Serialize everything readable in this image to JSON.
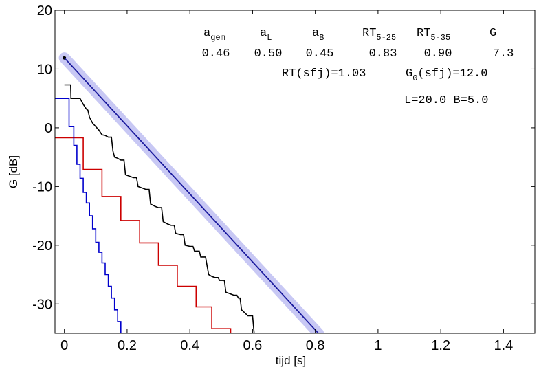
{
  "chart_data": {
    "type": "line",
    "xlabel": "tijd  [s]",
    "ylabel": "G  [dB]",
    "xlim": [
      -0.03,
      1.5
    ],
    "ylim": [
      -35,
      20
    ],
    "xticks": [
      0,
      0.2,
      0.4,
      0.6,
      0.8,
      1,
      1.2,
      1.4
    ],
    "xtick_labels": [
      "0",
      "0.2",
      "0.4",
      "0.6",
      "0.8",
      "1",
      "1.2",
      "1.4"
    ],
    "yticks": [
      20,
      10,
      0,
      -10,
      -20,
      -30
    ],
    "ytick_labels": [
      "20",
      "10",
      "0",
      "-10",
      "-20",
      "-30"
    ],
    "grid": false,
    "series": [
      {
        "color": "#1a1a9e",
        "halo_color": "#c8c8f4",
        "style": "line",
        "points": [
          [
            0,
            11.9
          ],
          [
            0.81,
            -35
          ]
        ]
      },
      {
        "color": "#000000",
        "style": "step",
        "points": [
          [
            0,
            7.3
          ],
          [
            0.02,
            7.3
          ],
          [
            0.021,
            5.0
          ],
          [
            0.05,
            5.0
          ],
          [
            0.06,
            4.0
          ],
          [
            0.07,
            3.2
          ],
          [
            0.075,
            3.0
          ],
          [
            0.08,
            1.8
          ],
          [
            0.09,
            0.8
          ],
          [
            0.1,
            0.2
          ],
          [
            0.11,
            -0.4
          ],
          [
            0.12,
            -1.2
          ],
          [
            0.13,
            -1.3
          ],
          [
            0.14,
            -1.6
          ],
          [
            0.15,
            -1.6
          ],
          [
            0.155,
            -4.0
          ],
          [
            0.16,
            -5.0
          ],
          [
            0.17,
            -5.2
          ],
          [
            0.18,
            -5.5
          ],
          [
            0.19,
            -5.5
          ],
          [
            0.195,
            -8.0
          ],
          [
            0.21,
            -8.3
          ],
          [
            0.22,
            -8.5
          ],
          [
            0.23,
            -8.5
          ],
          [
            0.235,
            -10.0
          ],
          [
            0.25,
            -10.3
          ],
          [
            0.26,
            -10.5
          ],
          [
            0.27,
            -10.5
          ],
          [
            0.275,
            -13.0
          ],
          [
            0.29,
            -13.4
          ],
          [
            0.3,
            -13.6
          ],
          [
            0.31,
            -13.6
          ],
          [
            0.315,
            -16.0
          ],
          [
            0.33,
            -16.4
          ],
          [
            0.34,
            -16.6
          ],
          [
            0.35,
            -16.6
          ],
          [
            0.355,
            -18.0
          ],
          [
            0.37,
            -18.2
          ],
          [
            0.38,
            -18.2
          ],
          [
            0.385,
            -20.0
          ],
          [
            0.4,
            -20.2
          ],
          [
            0.41,
            -20.2
          ],
          [
            0.415,
            -21.0
          ],
          [
            0.43,
            -21.0
          ],
          [
            0.435,
            -22.0
          ],
          [
            0.45,
            -22.0
          ],
          [
            0.46,
            -25.0
          ],
          [
            0.47,
            -25.3
          ],
          [
            0.48,
            -25.5
          ],
          [
            0.49,
            -25.5
          ],
          [
            0.495,
            -26.0
          ],
          [
            0.51,
            -26.0
          ],
          [
            0.515,
            -28.0
          ],
          [
            0.53,
            -28.3
          ],
          [
            0.54,
            -28.5
          ],
          [
            0.55,
            -28.5
          ],
          [
            0.555,
            -29.0
          ],
          [
            0.56,
            -29.0
          ],
          [
            0.565,
            -31.0
          ],
          [
            0.575,
            -31.5
          ],
          [
            0.585,
            -32.0
          ],
          [
            0.6,
            -32.0
          ],
          [
            0.605,
            -35.0
          ]
        ]
      },
      {
        "color": "#cc0000",
        "style": "step",
        "points": [
          [
            -0.03,
            -1.7
          ],
          [
            0.06,
            -1.7
          ],
          [
            0.06,
            -7.1
          ],
          [
            0.12,
            -7.1
          ],
          [
            0.12,
            -11.7
          ],
          [
            0.18,
            -11.7
          ],
          [
            0.18,
            -15.8
          ],
          [
            0.24,
            -15.8
          ],
          [
            0.24,
            -19.6
          ],
          [
            0.3,
            -19.6
          ],
          [
            0.3,
            -23.4
          ],
          [
            0.36,
            -23.4
          ],
          [
            0.36,
            -27.0
          ],
          [
            0.42,
            -27.0
          ],
          [
            0.42,
            -30.5
          ],
          [
            0.47,
            -30.5
          ],
          [
            0.47,
            -34.2
          ],
          [
            0.53,
            -34.2
          ],
          [
            0.53,
            -35.0
          ]
        ]
      },
      {
        "color": "#0000cc",
        "style": "step",
        "points": [
          [
            -0.03,
            5.0
          ],
          [
            0.015,
            5.0
          ],
          [
            0.015,
            0.2
          ],
          [
            0.03,
            0.2
          ],
          [
            0.03,
            -3.0
          ],
          [
            0.04,
            -3.0
          ],
          [
            0.04,
            -6.2
          ],
          [
            0.05,
            -6.2
          ],
          [
            0.05,
            -8.6
          ],
          [
            0.06,
            -8.6
          ],
          [
            0.06,
            -11.0
          ],
          [
            0.07,
            -11.0
          ],
          [
            0.07,
            -12.8
          ],
          [
            0.08,
            -12.8
          ],
          [
            0.08,
            -15.0
          ],
          [
            0.09,
            -15.0
          ],
          [
            0.09,
            -17.2
          ],
          [
            0.1,
            -17.2
          ],
          [
            0.1,
            -19.5
          ],
          [
            0.11,
            -19.5
          ],
          [
            0.11,
            -21.2
          ],
          [
            0.12,
            -21.2
          ],
          [
            0.12,
            -23.0
          ],
          [
            0.13,
            -23.0
          ],
          [
            0.13,
            -25.0
          ],
          [
            0.14,
            -25.0
          ],
          [
            0.14,
            -27.0
          ],
          [
            0.15,
            -27.0
          ],
          [
            0.15,
            -29.0
          ],
          [
            0.16,
            -29.0
          ],
          [
            0.16,
            -31.0
          ],
          [
            0.17,
            -31.0
          ],
          [
            0.17,
            -33.0
          ],
          [
            0.18,
            -33.0
          ],
          [
            0.18,
            -35.0
          ]
        ]
      }
    ],
    "marker": {
      "x": 0,
      "y": 11.9,
      "color": "#000000",
      "halo_color": "#c8c8f4"
    },
    "annotations": {
      "header_row": [
        {
          "main": "a",
          "sub": "gem"
        },
        {
          "main": "a",
          "sub": "L"
        },
        {
          "main": "a",
          "sub": "B"
        },
        {
          "main": "RT",
          "sub": "5-25"
        },
        {
          "main": "RT",
          "sub": "5-35"
        },
        {
          "main": "G",
          "sub": ""
        }
      ],
      "value_row": [
        "0.46",
        "0.50",
        "0.45",
        "0.83",
        "0.90",
        "7.3"
      ],
      "rt_sfj": "RT(sfj)=1.03",
      "g0_main": "G",
      "g0_sub": "0",
      "g0_rest": "(sfj)=12.0",
      "dims": "L=20.0 B=5.0"
    }
  }
}
